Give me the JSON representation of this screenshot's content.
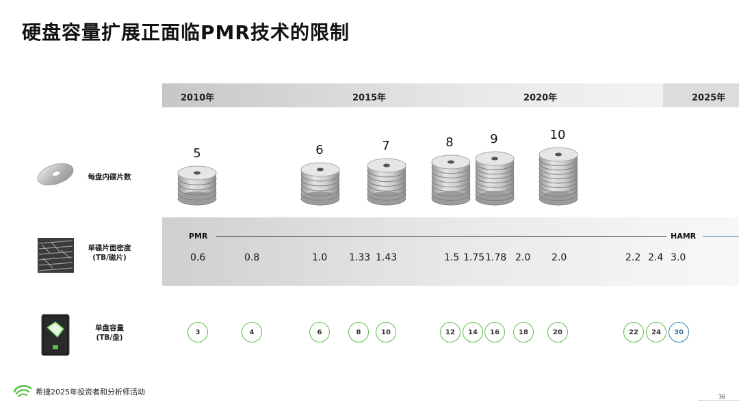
{
  "title": "硬盘容量扩展正面临PMR技术的限制",
  "timeline": {
    "years": [
      "2010年",
      "2015年",
      "2020年",
      "2025年"
    ]
  },
  "rows": {
    "platters_label": "每盘内碟片数",
    "density_label_1": "单碟片面密度",
    "density_label_2": "(TB/磁片)",
    "capacity_label_1": "单盘容量",
    "capacity_label_2": "(TB/盘)"
  },
  "platter_counts": [
    "5",
    "6",
    "7",
    "8",
    "9",
    "10"
  ],
  "density": {
    "pmr_label": "PMR",
    "hamr_label": "HAMR",
    "values": [
      "0.6",
      "0.8",
      "1.0",
      "1.33",
      "1.43",
      "1.5",
      "1.75",
      "1.78",
      "2.0",
      "2.0",
      "2.2",
      "2.4",
      "3.0"
    ]
  },
  "capacities": [
    "3",
    "4",
    "6",
    "8",
    "10",
    "12",
    "14",
    "16",
    "18",
    "20",
    "22",
    "24",
    "30"
  ],
  "colors": {
    "pmr_circle": "#5cbd48",
    "hamr_circle": "#2f7fb0",
    "brand_green": "#5cbd48"
  },
  "footer": {
    "event_text": "希捷2025年投资者和分析师活动",
    "page_number": "36",
    "logo_icon": "seagate-logo-icon"
  },
  "icons": {
    "platter": "hdd-platter-icon",
    "density": "platter-surface-microscope-icon",
    "drive": "hard-drive-exos-icon",
    "stack": "platter-stack-icon"
  }
}
